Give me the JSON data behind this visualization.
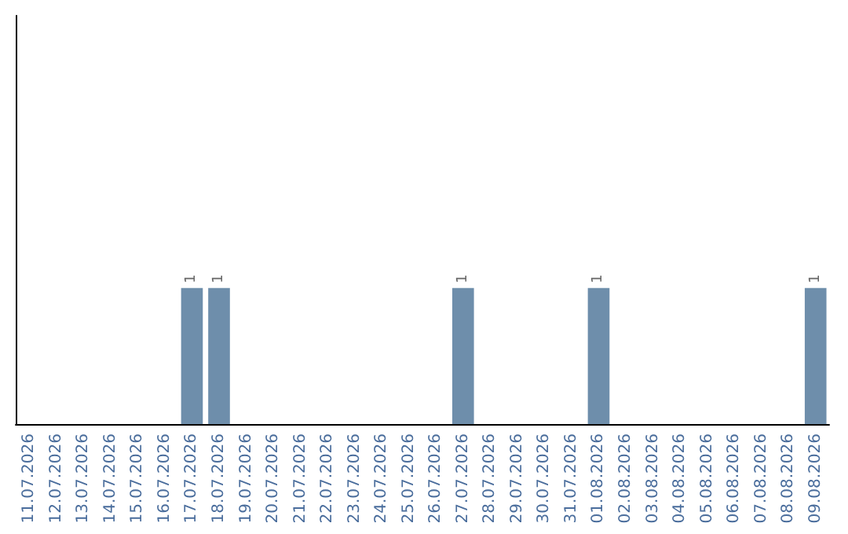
{
  "chart_data": {
    "type": "bar",
    "categories": [
      "11.07.2026",
      "12.07.2026",
      "13.07.2026",
      "14.07.2026",
      "15.07.2026",
      "16.07.2026",
      "17.07.2026",
      "18.07.2026",
      "19.07.2026",
      "20.07.2026",
      "21.07.2026",
      "22.07.2026",
      "23.07.2026",
      "24.07.2026",
      "25.07.2026",
      "26.07.2026",
      "27.07.2026",
      "28.07.2026",
      "29.07.2026",
      "30.07.2026",
      "31.07.2026",
      "01.08.2026",
      "02.08.2026",
      "03.08.2026",
      "04.08.2026",
      "05.08.2026",
      "06.08.2026",
      "07.08.2026",
      "08.08.2026",
      "09.08.2026"
    ],
    "values": [
      0,
      0,
      0,
      0,
      0,
      0,
      1,
      1,
      0,
      0,
      0,
      0,
      0,
      0,
      0,
      0,
      1,
      0,
      0,
      0,
      0,
      1,
      0,
      0,
      0,
      0,
      0,
      0,
      0,
      1
    ],
    "value_labels": [
      null,
      null,
      null,
      null,
      null,
      null,
      "1",
      "1",
      null,
      null,
      null,
      null,
      null,
      null,
      null,
      null,
      "1",
      null,
      null,
      null,
      null,
      "1",
      null,
      null,
      null,
      null,
      null,
      null,
      null,
      "1"
    ],
    "color": "#6e8eab",
    "ylim": [
      0,
      3
    ],
    "tick_labels": "x"
  }
}
